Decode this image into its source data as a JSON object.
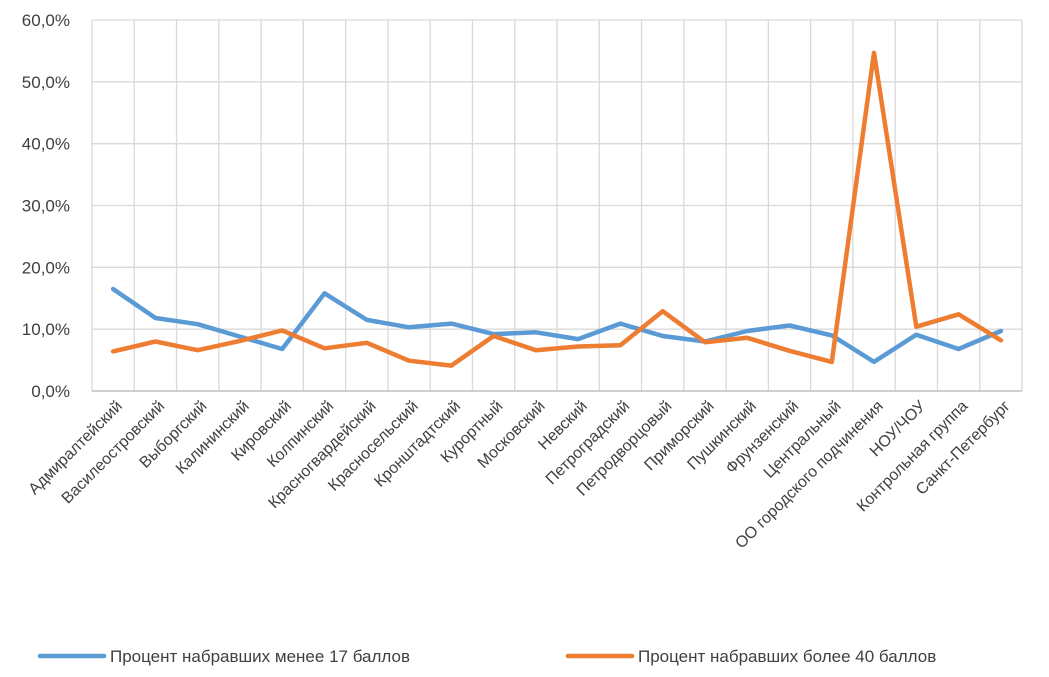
{
  "chart_data": {
    "type": "line",
    "title": "",
    "xlabel": "",
    "ylabel": "",
    "ylim": [
      0,
      60
    ],
    "y_ticks": [
      "0,0%",
      "10,0%",
      "20,0%",
      "30,0%",
      "40,0%",
      "50,0%",
      "60,0%"
    ],
    "y_tick_values": [
      0,
      10,
      20,
      30,
      40,
      50,
      60
    ],
    "grid": "vertical and horizontal",
    "legend_position": "bottom",
    "categories": [
      "Адмиралтейский",
      "Василеостровский",
      "Выборгский",
      "Калининский",
      "Кировский",
      "Колпинский",
      "Красногвардейский",
      "Красносельский",
      "Кронштадтский",
      "Курортный",
      "Московский",
      "Невский",
      "Петроградский",
      "Петродворцовый",
      "Приморский",
      "Пушкинский",
      "Фрунзенский",
      "Центральный",
      "ОО городского подчинения",
      "НОУ/ЧОУ",
      "Контрольная группа",
      "Санкт-Петербург"
    ],
    "series": [
      {
        "name": "Процент набравших менее 17 баллов",
        "color": "#5b9bd5",
        "values": [
          16.5,
          11.8,
          10.8,
          8.8,
          6.8,
          15.8,
          11.5,
          10.3,
          10.9,
          9.2,
          9.5,
          8.4,
          10.9,
          8.9,
          8.0,
          9.7,
          10.6,
          9.0,
          4.7,
          9.1,
          6.8,
          9.7
        ]
      },
      {
        "name": "Процент набравших более 40 баллов",
        "color": "#ed7d31",
        "values": [
          6.4,
          8.0,
          6.6,
          8.1,
          9.8,
          6.9,
          7.8,
          4.9,
          4.1,
          8.9,
          6.6,
          7.2,
          7.4,
          12.9,
          7.9,
          8.6,
          6.5,
          4.7,
          54.7,
          10.4,
          12.4,
          8.2
        ]
      }
    ]
  }
}
